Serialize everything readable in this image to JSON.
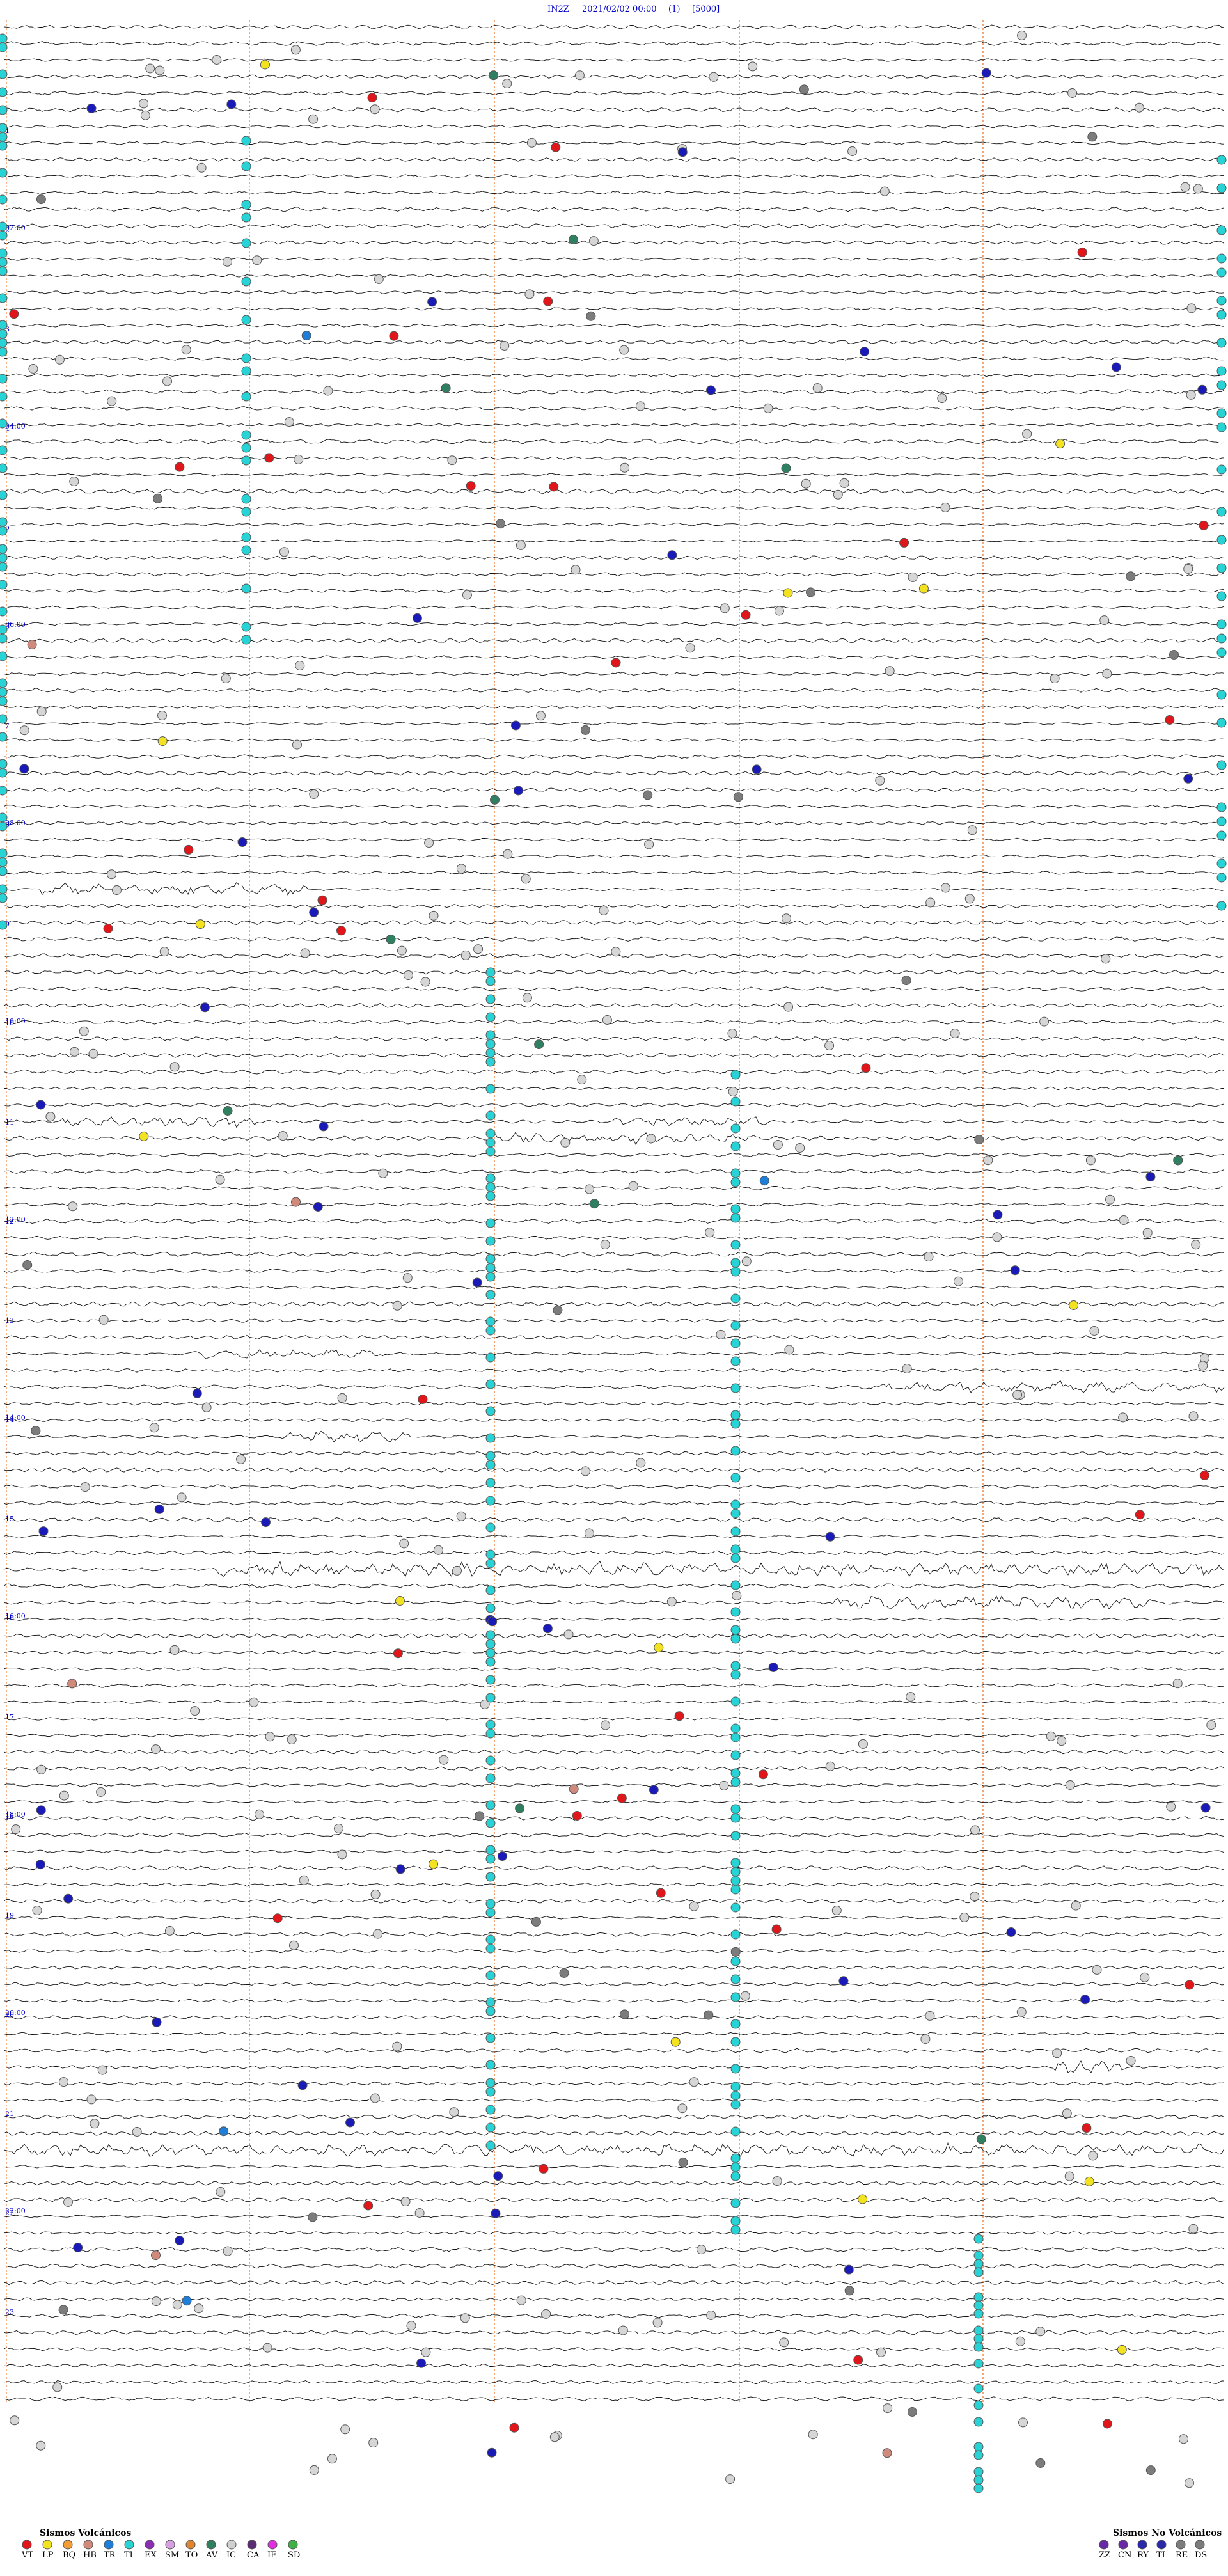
{
  "header": {
    "station": "IN2Z",
    "datetime": "2021/02/02 00:00",
    "channel": "(1)",
    "scale": "[5000]"
  },
  "chart_data": {
    "type": "helicorder",
    "title": "",
    "trace_count": 144,
    "hour_labels": [
      "02:00",
      "04:00",
      "06:00",
      "08:00",
      "10:00",
      "12:00",
      "14:00",
      "16:00",
      "18:00",
      "20:00",
      "22:00"
    ],
    "line_numbers": [
      "1",
      "2",
      "3",
      "4",
      "5",
      "6",
      "7",
      "8",
      "9",
      "10",
      "11",
      "12",
      "13",
      "14",
      "15",
      "16",
      "17",
      "18",
      "19",
      "20",
      "21",
      "22",
      "23"
    ],
    "grid": "minute-markers at 1/4, 2/4, 3/4 and 4/4 of each line",
    "legend_volcanic": {
      "title": "Sismos Volcánicos",
      "items": [
        {
          "code": "VT",
          "color": "#e0161a"
        },
        {
          "code": "LP",
          "color": "#f2e21f"
        },
        {
          "code": "BQ",
          "color": "#f39c32"
        },
        {
          "code": "HB",
          "color": "#cf8a7c"
        },
        {
          "code": "TR",
          "color": "#1f7fd8"
        },
        {
          "code": "TI",
          "color": "#28d3d5"
        },
        {
          "code": "EX",
          "color": "#8b2fb2"
        },
        {
          "code": "SM",
          "color": "#d4a0e0"
        },
        {
          "code": "TO",
          "color": "#e0852f"
        },
        {
          "code": "AV",
          "color": "#2f8060"
        },
        {
          "code": "IC",
          "color": "#d0d0d0"
        },
        {
          "code": "CA",
          "color": "#5a2c70"
        },
        {
          "code": "IF",
          "color": "#e02ee0"
        },
        {
          "code": "SD",
          "color": "#41b046"
        }
      ]
    },
    "legend_nonvolcanic": {
      "title": "Sismos No Volcánicos",
      "items": [
        {
          "code": "ZZ",
          "color": "#6a2aa8"
        },
        {
          "code": "CN",
          "color": "#6a2aa8"
        },
        {
          "code": "RY",
          "color": "#2a2aa8"
        },
        {
          "code": "TL",
          "color": "#2a2aa8"
        },
        {
          "code": "RE",
          "color": "#7c7c7c"
        },
        {
          "code": "DS",
          "color": "#7c7c7c"
        }
      ]
    },
    "event_counts_approx": {
      "TI": 95,
      "IC": 260,
      "TL": 55,
      "VT": 38,
      "LP": 15,
      "AV": 12,
      "RE": 30,
      "HB": 6,
      "TR": 4
    }
  },
  "colors": {
    "trace": "#111111",
    "minute_line": "#f08040",
    "label_text": "#0000cc",
    "marker_stroke": "#555555"
  }
}
